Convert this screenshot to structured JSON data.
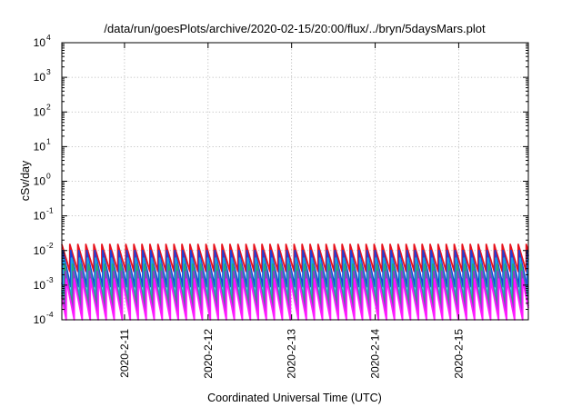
{
  "chart_data": {
    "type": "line",
    "title": "/data/run/goesPlots/archive/2020-02-15/20:00/flux/../bryn/5daysMars.plot",
    "xlabel": "Coordinated Universal Time (UTC)",
    "ylabel": "cSv/day",
    "yscale": "log",
    "ylim": [
      0.0001,
      10000
    ],
    "xlim": [
      "2020-02-10T06:00",
      "2020-02-15T20:00"
    ],
    "x_tick_labels": [
      "2020-2-11",
      "2020-2-12",
      "2020-2-13",
      "2020-2-14",
      "2020-2-15"
    ],
    "y_ticks": [
      {
        "base": "10",
        "exp": "-4"
      },
      {
        "base": "10",
        "exp": "-3"
      },
      {
        "base": "10",
        "exp": "-2"
      },
      {
        "base": "10",
        "exp": "-1"
      },
      {
        "base": "10",
        "exp": "0"
      },
      {
        "base": "10",
        "exp": "1"
      },
      {
        "base": "10",
        "exp": "2"
      },
      {
        "base": "10",
        "exp": "3"
      },
      {
        "base": "10",
        "exp": "4"
      }
    ],
    "grid": true,
    "cycle_period_hours": 2.3,
    "series": [
      {
        "color": "#e8121c",
        "peak": 0.015,
        "trough": 0.0025,
        "phase_hours": 0.0
      },
      {
        "color": "#1f3fd6",
        "peak": 0.01,
        "trough": 0.0009,
        "phase_hours": 0.25
      },
      {
        "color": "#19a8e6",
        "peak": 0.006,
        "trough": 0.0004,
        "phase_hours": 0.5
      },
      {
        "color": "#2fa86a",
        "peak": 0.004,
        "trough": 0.00025,
        "phase_hours": 0.75
      },
      {
        "color": "#8a3ed0",
        "peak": 0.0025,
        "trough": 0.00015,
        "phase_hours": 1.0
      },
      {
        "color": "#ff1aff",
        "peak": 0.0015,
        "trough": 0.0001,
        "phase_hours": 1.25
      }
    ]
  }
}
